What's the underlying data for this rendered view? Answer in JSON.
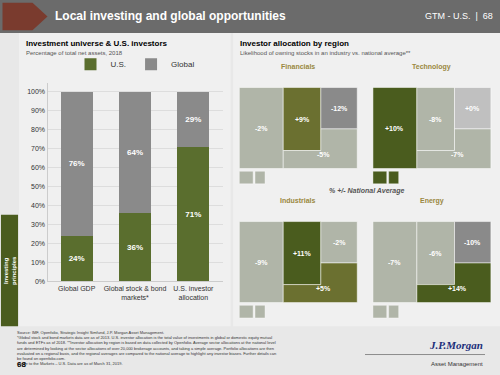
{
  "title": "Local investing and global opportunities",
  "annotations": [
    "GTM - U.S.  |  68",
    "Investor allocation by region",
    "Likelihood of owning stocks in an industry vs. national average**",
    "% +/- National Average",
    "Investing\nprinciples",
    "Source: IMF, Openfolio, Strategic Insight Simfund, J.P. Morgan Asset Management.\n*Global stock and bond markets data are as of 2013. U.S. investor allocation is the total value of investments in global or domestic equity mutual\nfunds and ETFs as of 2018. **Investor allocation by region is based on data collected by Openfolio. Average sector allocations at the national level\nare determined by looking at the sector allocations of over 20,000 brokerage accounts, and taking a simple average. Portfolio allocations are then\nevaluated on a regional basis, and the regional averages are compared to the national average to highlight any investor biases. Further details can\nbe found on openfolio.com.\nGuide to the Markets – U.S. Data are as of March 31, 2019.",
    "68",
    "J.P.Morgan",
    "Asset Management"
  ],
  "chart_data": [
    {
      "type": "bar",
      "title": "Investment universe & U.S. investors",
      "subtitle": "Percentage of total net assets, 2018",
      "categories": [
        "Global GDP",
        "Global stock & bond\nmarkets*",
        "U.S. investor\nallocation"
      ],
      "series": [
        {
          "name": "U.S.",
          "color": "#5a6e2e",
          "values": [
            24,
            36,
            71
          ],
          "value_labels": [
            "24%",
            "36%",
            "71%"
          ]
        },
        {
          "name": "Global",
          "color": "#8a8a8a",
          "values": [
            76,
            64,
            29
          ],
          "value_labels": [
            "76%",
            "64%",
            "29%"
          ]
        }
      ],
      "stacked": true,
      "data_labels": true,
      "legend": "top",
      "grid": true,
      "ylim": [
        0,
        105
      ],
      "yticks": [
        {
          "value": 0,
          "label": "0%"
        },
        {
          "value": 10,
          "label": "10%"
        },
        {
          "value": 20,
          "label": "20%"
        },
        {
          "value": 30,
          "label": "30%"
        },
        {
          "value": 40,
          "label": "40%"
        },
        {
          "value": 50,
          "label": "50%"
        },
        {
          "value": 60,
          "label": "60%"
        },
        {
          "value": 70,
          "label": "70%"
        },
        {
          "value": 80,
          "label": "80%"
        },
        {
          "value": 90,
          "label": "90%"
        },
        {
          "value": 100,
          "label": "100%"
        }
      ]
    },
    {
      "type": "map",
      "title": "Financials",
      "categories": [
        null,
        null,
        null,
        null
      ],
      "values": [
        -2,
        9,
        -12,
        -5
      ],
      "value_labels": [
        "-2%",
        "+9%",
        "-12%",
        "-5%"
      ],
      "colors": [
        "#b0b5a8",
        "#6b7030",
        "#8a8a8a",
        "#b0b5a8"
      ],
      "data_labels": true,
      "tick_labels": false
    },
    {
      "type": "map",
      "title": "Technology",
      "categories": [
        null,
        null,
        null,
        null
      ],
      "values": [
        10,
        -8,
        0,
        -7
      ],
      "value_labels": [
        "+10%",
        "-8%",
        "+0%",
        "-7%"
      ],
      "colors": [
        "#4a5c1e",
        "#b0b5a8",
        "#c0c0c0",
        "#b0b5a8"
      ],
      "data_labels": true,
      "tick_labels": false
    },
    {
      "type": "map",
      "title": "Industrials",
      "categories": [
        null,
        null,
        null,
        null
      ],
      "values": [
        -9,
        11,
        -2,
        5
      ],
      "value_labels": [
        "-9%",
        "+11%",
        "-2%",
        "+5%"
      ],
      "colors": [
        "#b0b5a8",
        "#4a5c1e",
        "#b0b5a8",
        "#6b7030"
      ],
      "data_labels": true,
      "tick_labels": false
    },
    {
      "type": "map",
      "title": "Energy",
      "categories": [
        null,
        null,
        null,
        null
      ],
      "values": [
        -7,
        -6,
        -10,
        14
      ],
      "value_labels": [
        "-7%",
        "-6%",
        "-10%",
        "+14%"
      ],
      "colors": [
        "#b0b5a8",
        "#b0b5a8",
        "#8a8a8a",
        "#4a5c1e"
      ],
      "data_labels": true,
      "tick_labels": false
    }
  ]
}
